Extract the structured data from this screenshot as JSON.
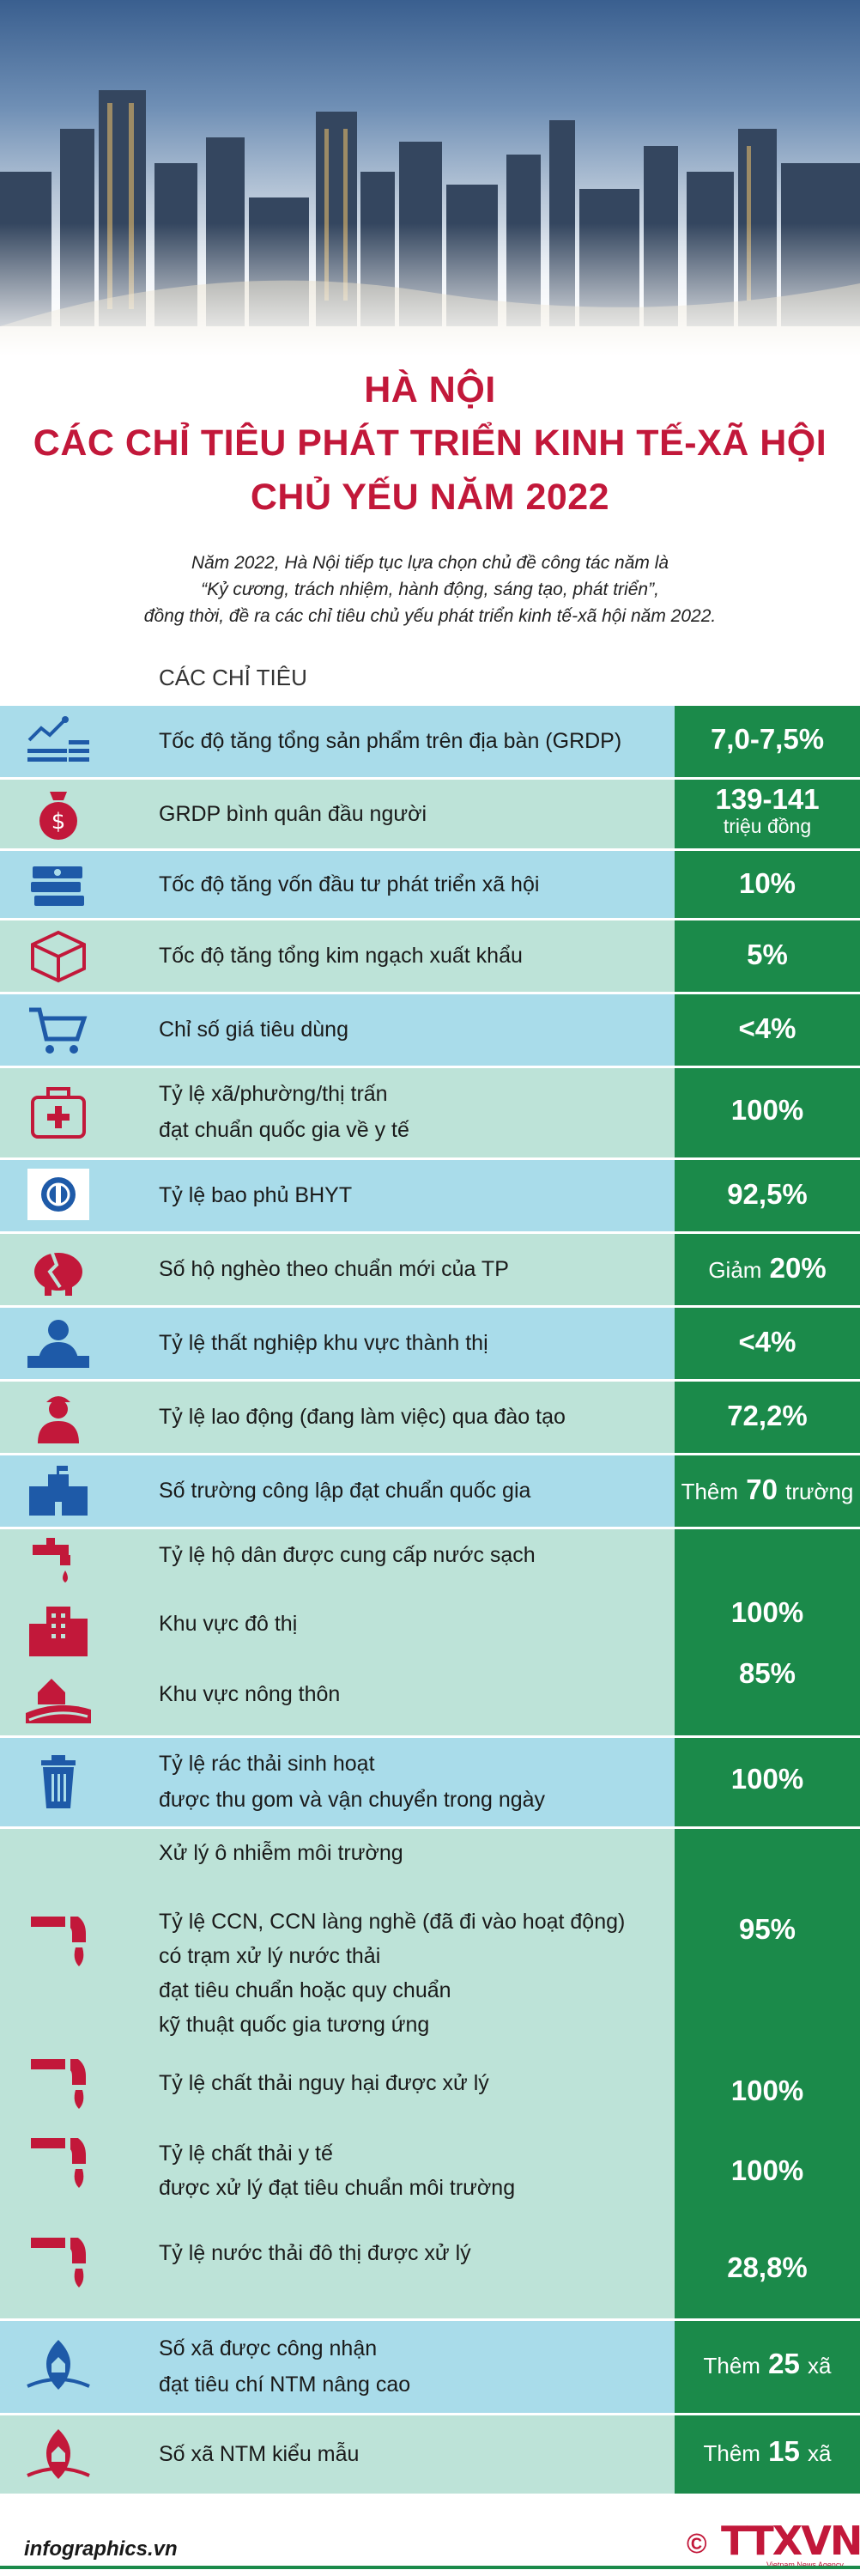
{
  "header": {
    "title_line1": "HÀ NỘI",
    "title_line2": "CÁC CHỈ TIÊU PHÁT TRIỂN KINH TẾ-XÃ HỘI",
    "title_line3": "CHỦ YẾU NĂM 2022",
    "intro_line1": "Năm 2022, Hà Nội tiếp tục lựa chọn chủ đề công tác năm là",
    "intro_line2": "“Kỷ cương, trách nhiệm, hành động, sáng tạo, phát triển”,",
    "intro_line3": "đồng thời, đề ra các chỉ tiêu chủ yếu phát triển kinh tế-xã hội năm 2022."
  },
  "section_heading": "CÁC CHỈ TIÊU",
  "indicators": [
    {
      "label": "Tốc độ tăng tổng sản phẩm trên địa bàn (GRDP)",
      "value": "7,0-7,5%",
      "icon": "chart-up-icon"
    },
    {
      "label": "GRDP bình quân đầu người",
      "value": "139-141",
      "unit": "triệu đồng",
      "icon": "money-bag-icon"
    },
    {
      "label": "Tốc độ tăng vốn đầu tư phát triển xã hội",
      "value": "10%",
      "icon": "cash-stack-icon"
    },
    {
      "label": "Tốc độ tăng tổng kim ngạch xuất khẩu",
      "value": "5%",
      "icon": "box-icon"
    },
    {
      "label": "Chỉ số giá tiêu dùng",
      "value": "<4%",
      "icon": "cart-icon"
    },
    {
      "label_1": "Tỷ lệ xã/phường/thị trấn",
      "label_2": "đạt chuẩn quốc gia về y tế",
      "value": "100%",
      "icon": "medical-kit-icon"
    },
    {
      "label": "Tỷ lệ bao phủ BHYT",
      "value": "92,5%",
      "icon": "health-insurance-icon"
    },
    {
      "label": "Số hộ nghèo theo chuẩn mới của TP",
      "value_prefix": "Giảm",
      "value": "20%",
      "icon": "broken-piggy-icon"
    },
    {
      "label": "Tỷ lệ thất nghiệp khu vực thành thị",
      "value": "<4%",
      "icon": "unemployed-worker-icon"
    },
    {
      "label": "Tỷ lệ lao động (đang làm việc) qua đào tạo",
      "value": "72,2%",
      "icon": "worker-icon"
    },
    {
      "label": "Số trường công lập đạt chuẩn quốc gia",
      "value_prefix": "Thêm",
      "value": "70",
      "value_suffix": "trường",
      "icon": "school-icon"
    },
    {
      "label": "Tỷ lệ hộ dân được cung cấp nước sạch",
      "icon": "water-tap-icon"
    },
    {
      "label": "Khu vực đô thị",
      "value": "100%",
      "icon": "city-buildings-icon"
    },
    {
      "label": "Khu vực nông thôn",
      "value": "85%",
      "icon": "rural-house-icon"
    },
    {
      "label_1": "Tỷ lệ rác thải sinh hoạt",
      "label_2": "được thu gom và vận chuyển trong ngày",
      "value": "100%",
      "icon": "trash-bin-icon"
    },
    {
      "label": "Xử lý ô nhiễm môi trường"
    },
    {
      "label_1": "Tỷ lệ CCN, CCN làng nghề (đã đi vào hoạt động)",
      "label_2": "có trạm xử lý nước thải",
      "label_3": "đạt tiêu chuẩn hoặc quy chuẩn",
      "label_4": "kỹ thuật quốc gia tương ứng",
      "value": "95%",
      "icon": "waste-pipe-icon"
    },
    {
      "label": "Tỷ lệ chất thải nguy hại được xử lý",
      "value": "100%",
      "icon": "waste-pipe-icon"
    },
    {
      "label_1": "Tỷ lệ chất thải y tế",
      "label_2": "được xử lý đạt tiêu chuẩn môi trường",
      "value": "100%",
      "icon": "waste-pipe-icon"
    },
    {
      "label": "Tỷ lệ nước thải đô thị được xử lý",
      "value": "28,8%",
      "icon": "waste-pipe-icon"
    },
    {
      "label_1": "Số xã được công nhận",
      "label_2": "đạt tiêu chí NTM nâng cao",
      "value_prefix": "Thêm",
      "value": "25",
      "value_suffix": "xã",
      "icon": "rural-commune-icon"
    },
    {
      "label": "Số xã NTM kiểu mẫu",
      "value_prefix": "Thêm",
      "value": "15",
      "value_suffix": "xã",
      "icon": "model-commune-icon"
    }
  ],
  "footer": {
    "site": "infographics.vn",
    "copyright_symbol": "©",
    "logo_text": "TTXVN",
    "logo_subtext": "Vietnam News Agency"
  },
  "colors": {
    "title_red": "#c2183a",
    "value_green": "#1b8a4a",
    "row_blue": "#a9dcea",
    "row_mint": "#bde3d8",
    "icon_blue": "#1e5aa8",
    "icon_red": "#c2183a"
  }
}
